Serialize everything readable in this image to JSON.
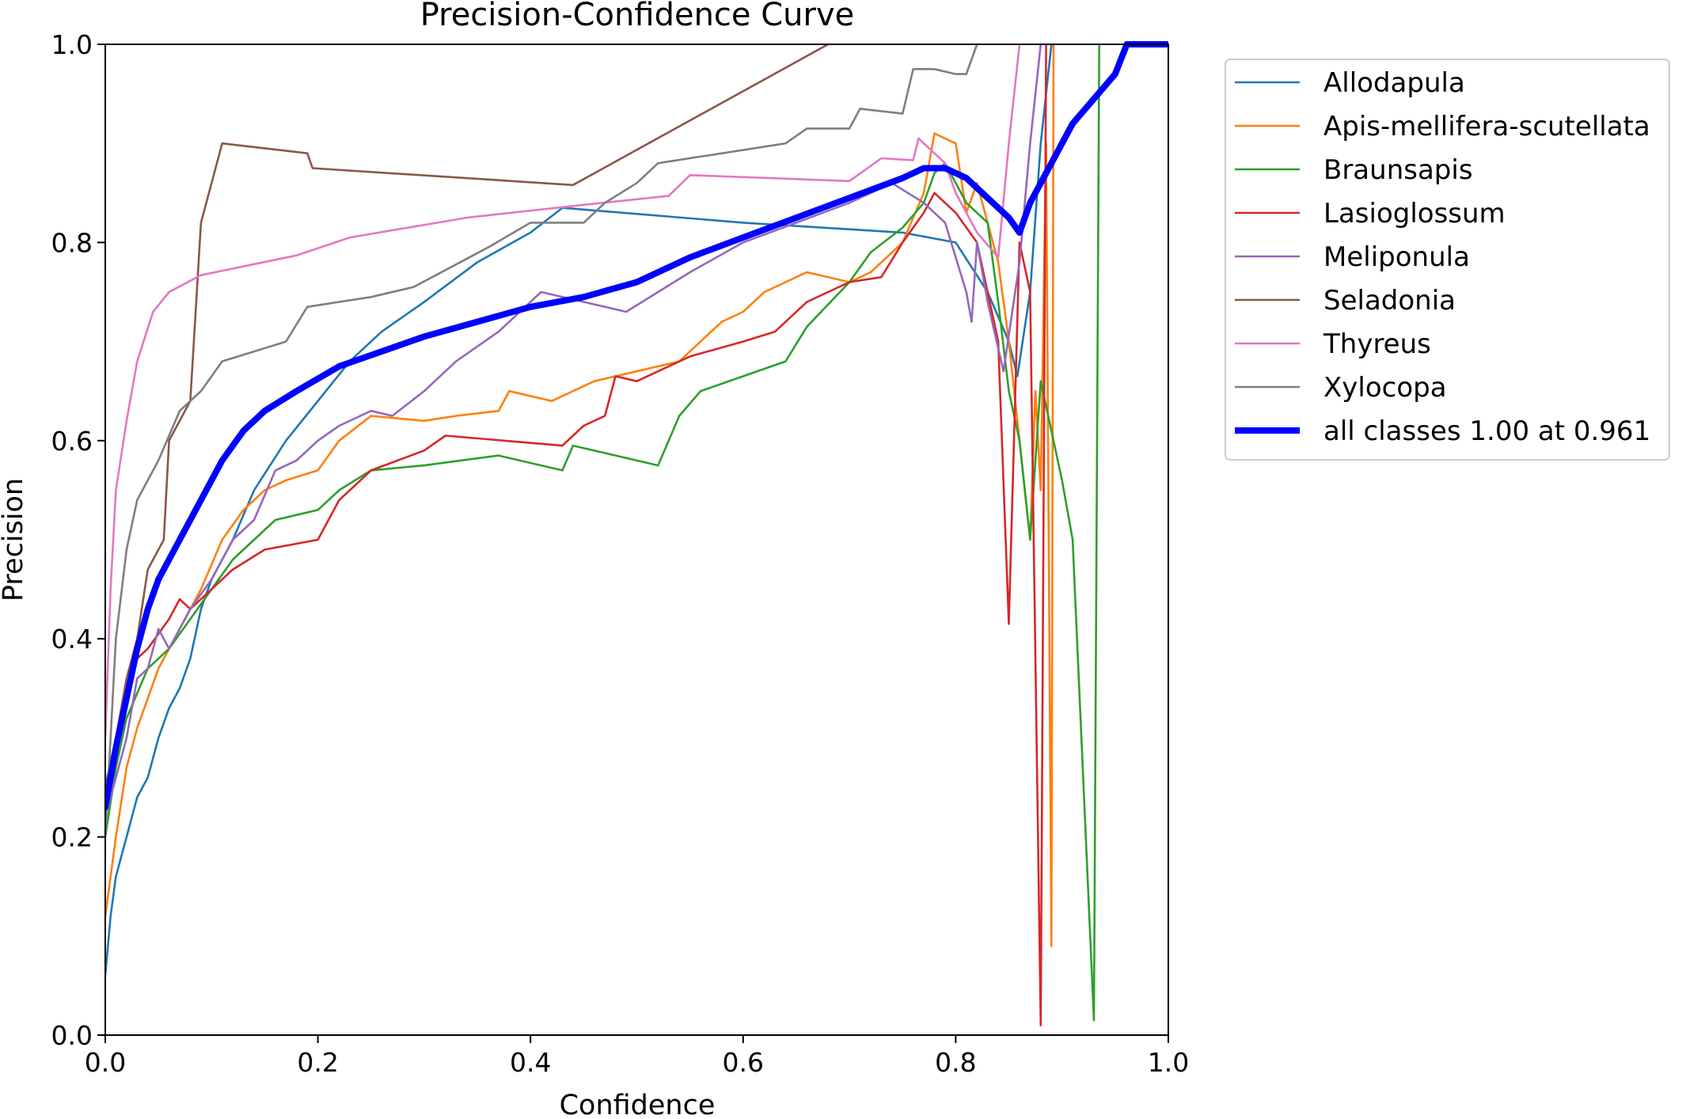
{
  "chart_data": {
    "type": "line",
    "title": "Precision-Confidence Curve",
    "xlabel": "Confidence",
    "ylabel": "Precision",
    "xlim": [
      0,
      1
    ],
    "ylim": [
      0,
      1
    ],
    "x_ticks": [
      "0.0",
      "0.2",
      "0.4",
      "0.6",
      "0.8",
      "1.0"
    ],
    "y_ticks": [
      "0.0",
      "0.2",
      "0.4",
      "0.6",
      "0.8",
      "1.0"
    ],
    "grid": false,
    "legend_position": "outside-right-top",
    "series": [
      {
        "name": "Allodapula",
        "color": "#1f77b4",
        "points": [
          [
            0.0,
            0.06
          ],
          [
            0.005,
            0.12
          ],
          [
            0.01,
            0.16
          ],
          [
            0.02,
            0.2
          ],
          [
            0.03,
            0.24
          ],
          [
            0.04,
            0.26
          ],
          [
            0.05,
            0.3
          ],
          [
            0.06,
            0.33
          ],
          [
            0.07,
            0.35
          ],
          [
            0.08,
            0.38
          ],
          [
            0.09,
            0.43
          ],
          [
            0.1,
            0.46
          ],
          [
            0.12,
            0.5
          ],
          [
            0.14,
            0.55
          ],
          [
            0.17,
            0.6
          ],
          [
            0.2,
            0.64
          ],
          [
            0.23,
            0.68
          ],
          [
            0.26,
            0.71
          ],
          [
            0.3,
            0.74
          ],
          [
            0.35,
            0.78
          ],
          [
            0.4,
            0.81
          ],
          [
            0.43,
            0.835
          ],
          [
            0.6,
            0.82
          ],
          [
            0.75,
            0.81
          ],
          [
            0.8,
            0.8
          ],
          [
            0.83,
            0.75
          ],
          [
            0.85,
            0.7
          ],
          [
            0.858,
            0.665
          ],
          [
            0.87,
            0.75
          ],
          [
            0.88,
            0.9
          ],
          [
            0.89,
            1.0
          ]
        ]
      },
      {
        "name": "Apis-mellifera-scutellata",
        "color": "#ff7f0e",
        "points": [
          [
            0.0,
            0.12
          ],
          [
            0.01,
            0.2
          ],
          [
            0.02,
            0.27
          ],
          [
            0.03,
            0.31
          ],
          [
            0.05,
            0.37
          ],
          [
            0.07,
            0.41
          ],
          [
            0.09,
            0.45
          ],
          [
            0.11,
            0.5
          ],
          [
            0.13,
            0.53
          ],
          [
            0.15,
            0.55
          ],
          [
            0.17,
            0.56
          ],
          [
            0.2,
            0.57
          ],
          [
            0.22,
            0.6
          ],
          [
            0.25,
            0.625
          ],
          [
            0.3,
            0.62
          ],
          [
            0.33,
            0.625
          ],
          [
            0.37,
            0.63
          ],
          [
            0.38,
            0.65
          ],
          [
            0.42,
            0.64
          ],
          [
            0.46,
            0.66
          ],
          [
            0.5,
            0.67
          ],
          [
            0.54,
            0.68
          ],
          [
            0.58,
            0.72
          ],
          [
            0.6,
            0.73
          ],
          [
            0.62,
            0.75
          ],
          [
            0.66,
            0.77
          ],
          [
            0.7,
            0.76
          ],
          [
            0.72,
            0.77
          ],
          [
            0.75,
            0.8
          ],
          [
            0.77,
            0.85
          ],
          [
            0.78,
            0.91
          ],
          [
            0.8,
            0.9
          ],
          [
            0.81,
            0.83
          ],
          [
            0.82,
            0.86
          ],
          [
            0.83,
            0.82
          ],
          [
            0.84,
            0.78
          ],
          [
            0.85,
            0.7
          ],
          [
            0.86,
            0.6
          ],
          [
            0.87,
            0.5
          ],
          [
            0.875,
            0.65
          ],
          [
            0.88,
            0.55
          ],
          [
            0.885,
            0.9
          ],
          [
            0.89,
            0.09
          ],
          [
            0.892,
            1.0
          ]
        ]
      },
      {
        "name": "Braunsapis",
        "color": "#2ca02c",
        "points": [
          [
            0.0,
            0.2
          ],
          [
            0.01,
            0.27
          ],
          [
            0.02,
            0.32
          ],
          [
            0.04,
            0.37
          ],
          [
            0.06,
            0.39
          ],
          [
            0.08,
            0.42
          ],
          [
            0.1,
            0.45
          ],
          [
            0.12,
            0.48
          ],
          [
            0.14,
            0.5
          ],
          [
            0.16,
            0.52
          ],
          [
            0.2,
            0.53
          ],
          [
            0.22,
            0.55
          ],
          [
            0.25,
            0.57
          ],
          [
            0.3,
            0.575
          ],
          [
            0.37,
            0.585
          ],
          [
            0.43,
            0.57
          ],
          [
            0.44,
            0.595
          ],
          [
            0.52,
            0.575
          ],
          [
            0.53,
            0.6
          ],
          [
            0.54,
            0.625
          ],
          [
            0.56,
            0.65
          ],
          [
            0.64,
            0.68
          ],
          [
            0.66,
            0.715
          ],
          [
            0.7,
            0.76
          ],
          [
            0.72,
            0.79
          ],
          [
            0.75,
            0.815
          ],
          [
            0.77,
            0.84
          ],
          [
            0.78,
            0.87
          ],
          [
            0.79,
            0.88
          ],
          [
            0.81,
            0.84
          ],
          [
            0.83,
            0.82
          ],
          [
            0.84,
            0.74
          ],
          [
            0.85,
            0.65
          ],
          [
            0.86,
            0.6
          ],
          [
            0.87,
            0.5
          ],
          [
            0.88,
            0.66
          ],
          [
            0.9,
            0.56
          ],
          [
            0.91,
            0.5
          ],
          [
            0.93,
            0.015
          ],
          [
            0.935,
            1.0
          ]
        ]
      },
      {
        "name": "Lasioglossum",
        "color": "#d62728",
        "points": [
          [
            0.0,
            0.25
          ],
          [
            0.01,
            0.3
          ],
          [
            0.02,
            0.35
          ],
          [
            0.03,
            0.38
          ],
          [
            0.04,
            0.39
          ],
          [
            0.06,
            0.42
          ],
          [
            0.07,
            0.44
          ],
          [
            0.08,
            0.43
          ],
          [
            0.1,
            0.45
          ],
          [
            0.12,
            0.47
          ],
          [
            0.15,
            0.49
          ],
          [
            0.2,
            0.5
          ],
          [
            0.22,
            0.54
          ],
          [
            0.25,
            0.57
          ],
          [
            0.3,
            0.59
          ],
          [
            0.32,
            0.605
          ],
          [
            0.43,
            0.595
          ],
          [
            0.45,
            0.615
          ],
          [
            0.47,
            0.625
          ],
          [
            0.48,
            0.665
          ],
          [
            0.5,
            0.66
          ],
          [
            0.55,
            0.685
          ],
          [
            0.6,
            0.7
          ],
          [
            0.63,
            0.71
          ],
          [
            0.66,
            0.74
          ],
          [
            0.7,
            0.76
          ],
          [
            0.73,
            0.765
          ],
          [
            0.75,
            0.8
          ],
          [
            0.77,
            0.83
          ],
          [
            0.78,
            0.85
          ],
          [
            0.8,
            0.83
          ],
          [
            0.82,
            0.8
          ],
          [
            0.83,
            0.75
          ],
          [
            0.84,
            0.7
          ],
          [
            0.85,
            0.415
          ],
          [
            0.86,
            0.8
          ],
          [
            0.87,
            0.75
          ],
          [
            0.88,
            0.01
          ],
          [
            0.885,
            1.0
          ]
        ]
      },
      {
        "name": "Meliponula",
        "color": "#9467bd",
        "points": [
          [
            0.0,
            0.22
          ],
          [
            0.02,
            0.3
          ],
          [
            0.03,
            0.36
          ],
          [
            0.04,
            0.37
          ],
          [
            0.05,
            0.41
          ],
          [
            0.06,
            0.39
          ],
          [
            0.08,
            0.43
          ],
          [
            0.1,
            0.46
          ],
          [
            0.12,
            0.5
          ],
          [
            0.14,
            0.52
          ],
          [
            0.16,
            0.57
          ],
          [
            0.18,
            0.58
          ],
          [
            0.2,
            0.6
          ],
          [
            0.22,
            0.615
          ],
          [
            0.25,
            0.63
          ],
          [
            0.27,
            0.625
          ],
          [
            0.3,
            0.65
          ],
          [
            0.33,
            0.68
          ],
          [
            0.37,
            0.71
          ],
          [
            0.41,
            0.75
          ],
          [
            0.45,
            0.74
          ],
          [
            0.49,
            0.73
          ],
          [
            0.52,
            0.75
          ],
          [
            0.55,
            0.77
          ],
          [
            0.6,
            0.8
          ],
          [
            0.65,
            0.82
          ],
          [
            0.7,
            0.84
          ],
          [
            0.74,
            0.86
          ],
          [
            0.77,
            0.84
          ],
          [
            0.79,
            0.82
          ],
          [
            0.81,
            0.75
          ],
          [
            0.815,
            0.72
          ],
          [
            0.82,
            0.8
          ],
          [
            0.83,
            0.74
          ],
          [
            0.845,
            0.67
          ],
          [
            0.86,
            0.78
          ],
          [
            0.87,
            0.9
          ],
          [
            0.88,
            1.0
          ]
        ]
      },
      {
        "name": "Seladonia",
        "color": "#8c564b",
        "points": [
          [
            0.0,
            0.25
          ],
          [
            0.01,
            0.3
          ],
          [
            0.02,
            0.36
          ],
          [
            0.03,
            0.4
          ],
          [
            0.04,
            0.47
          ],
          [
            0.055,
            0.5
          ],
          [
            0.06,
            0.6
          ],
          [
            0.08,
            0.64
          ],
          [
            0.09,
            0.82
          ],
          [
            0.11,
            0.9
          ],
          [
            0.19,
            0.89
          ],
          [
            0.195,
            0.875
          ],
          [
            0.44,
            0.858
          ],
          [
            0.68,
            1.0
          ]
        ]
      },
      {
        "name": "Thyreus",
        "color": "#e377c2",
        "points": [
          [
            0.0,
            0.3
          ],
          [
            0.005,
            0.45
          ],
          [
            0.01,
            0.55
          ],
          [
            0.02,
            0.62
          ],
          [
            0.03,
            0.68
          ],
          [
            0.045,
            0.73
          ],
          [
            0.06,
            0.75
          ],
          [
            0.09,
            0.767
          ],
          [
            0.18,
            0.787
          ],
          [
            0.23,
            0.805
          ],
          [
            0.34,
            0.825
          ],
          [
            0.45,
            0.838
          ],
          [
            0.53,
            0.847
          ],
          [
            0.55,
            0.868
          ],
          [
            0.7,
            0.862
          ],
          [
            0.73,
            0.885
          ],
          [
            0.76,
            0.883
          ],
          [
            0.765,
            0.905
          ],
          [
            0.78,
            0.89
          ],
          [
            0.79,
            0.88
          ],
          [
            0.8,
            0.85
          ],
          [
            0.82,
            0.81
          ],
          [
            0.84,
            0.785
          ],
          [
            0.85,
            0.9
          ],
          [
            0.86,
            1.0
          ]
        ]
      },
      {
        "name": "Xylocopa",
        "color": "#7f7f7f",
        "points": [
          [
            0.0,
            0.2
          ],
          [
            0.01,
            0.4
          ],
          [
            0.02,
            0.49
          ],
          [
            0.03,
            0.54
          ],
          [
            0.05,
            0.58
          ],
          [
            0.07,
            0.63
          ],
          [
            0.09,
            0.65
          ],
          [
            0.11,
            0.68
          ],
          [
            0.14,
            0.69
          ],
          [
            0.17,
            0.7
          ],
          [
            0.19,
            0.735
          ],
          [
            0.22,
            0.74
          ],
          [
            0.25,
            0.745
          ],
          [
            0.29,
            0.755
          ],
          [
            0.36,
            0.795
          ],
          [
            0.4,
            0.82
          ],
          [
            0.45,
            0.82
          ],
          [
            0.47,
            0.84
          ],
          [
            0.5,
            0.86
          ],
          [
            0.52,
            0.88
          ],
          [
            0.64,
            0.9
          ],
          [
            0.66,
            0.915
          ],
          [
            0.7,
            0.915
          ],
          [
            0.71,
            0.935
          ],
          [
            0.75,
            0.93
          ],
          [
            0.76,
            0.975
          ],
          [
            0.78,
            0.975
          ],
          [
            0.8,
            0.97
          ],
          [
            0.81,
            0.97
          ],
          [
            0.82,
            1.0
          ]
        ]
      },
      {
        "name": "all classes 1.00 at 0.961",
        "color": "#0000ff",
        "thick": true,
        "points": [
          [
            0.0,
            0.23
          ],
          [
            0.01,
            0.29
          ],
          [
            0.02,
            0.34
          ],
          [
            0.03,
            0.39
          ],
          [
            0.04,
            0.43
          ],
          [
            0.05,
            0.46
          ],
          [
            0.07,
            0.5
          ],
          [
            0.09,
            0.54
          ],
          [
            0.11,
            0.58
          ],
          [
            0.13,
            0.61
          ],
          [
            0.15,
            0.63
          ],
          [
            0.18,
            0.65
          ],
          [
            0.22,
            0.675
          ],
          [
            0.26,
            0.69
          ],
          [
            0.3,
            0.705
          ],
          [
            0.35,
            0.72
          ],
          [
            0.4,
            0.735
          ],
          [
            0.45,
            0.745
          ],
          [
            0.5,
            0.76
          ],
          [
            0.55,
            0.785
          ],
          [
            0.6,
            0.805
          ],
          [
            0.65,
            0.825
          ],
          [
            0.7,
            0.845
          ],
          [
            0.75,
            0.865
          ],
          [
            0.77,
            0.875
          ],
          [
            0.79,
            0.875
          ],
          [
            0.81,
            0.865
          ],
          [
            0.83,
            0.845
          ],
          [
            0.85,
            0.825
          ],
          [
            0.86,
            0.81
          ],
          [
            0.87,
            0.84
          ],
          [
            0.89,
            0.88
          ],
          [
            0.91,
            0.92
          ],
          [
            0.93,
            0.945
          ],
          [
            0.95,
            0.97
          ],
          [
            0.961,
            1.0
          ],
          [
            1.0,
            1.0
          ]
        ]
      }
    ]
  }
}
